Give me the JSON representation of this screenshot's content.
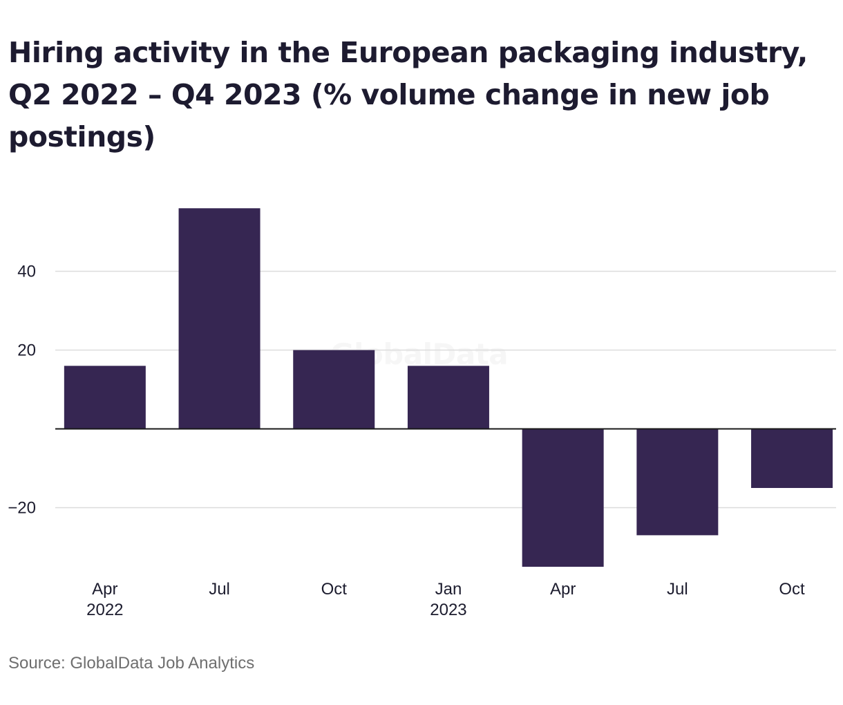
{
  "chart_data": {
    "type": "bar",
    "title": "Hiring activity in the European packaging industry, Q2 2022 – Q4 2023 (% volume change in new job postings)",
    "categories": [
      {
        "label": "Apr",
        "sublabel": "2022"
      },
      {
        "label": "Jul",
        "sublabel": ""
      },
      {
        "label": "Oct",
        "sublabel": ""
      },
      {
        "label": "Jan",
        "sublabel": "2023"
      },
      {
        "label": "Apr",
        "sublabel": ""
      },
      {
        "label": "Jul",
        "sublabel": ""
      },
      {
        "label": "Oct",
        "sublabel": ""
      }
    ],
    "values": [
      16,
      56,
      20,
      16,
      -35,
      -27,
      -15
    ],
    "yticks": [
      40,
      20,
      -20
    ],
    "ytick_labels": [
      "40",
      "20",
      "−20"
    ],
    "ylim": [
      -35,
      56
    ],
    "grid": true,
    "bar_color": "#362652",
    "grid_color": "#dcdcdc",
    "zero_line_color": "#1a1a1a",
    "xlabel": "",
    "ylabel": ""
  },
  "source": "Source: GlobalData Job Analytics",
  "watermark": "GlobalData"
}
